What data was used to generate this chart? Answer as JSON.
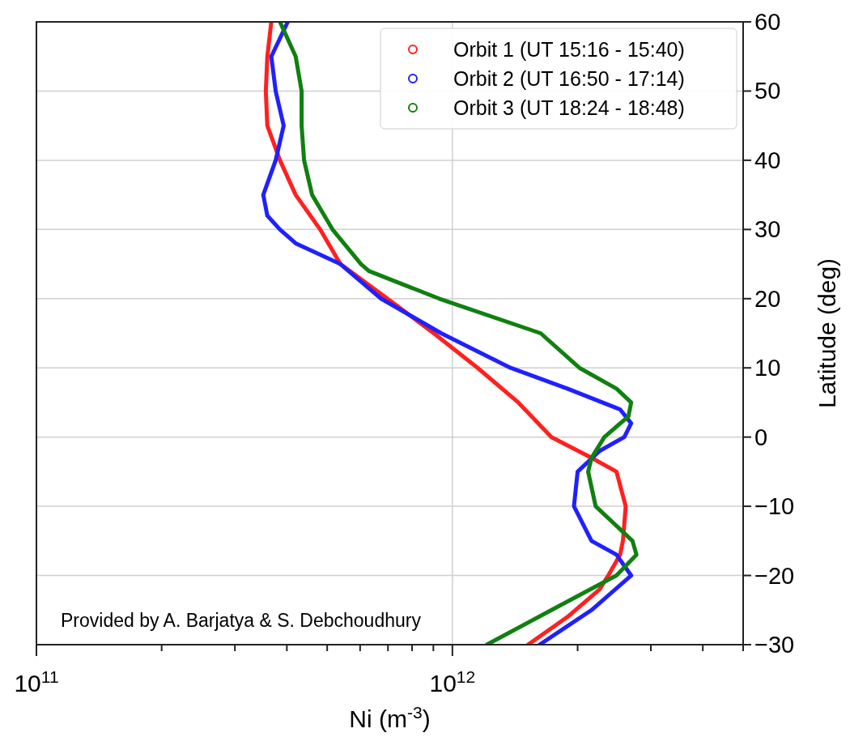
{
  "chart_data": {
    "type": "line",
    "xlabel": "Ni (m$^{-3}$)",
    "ylabel": "Latitude (deg)",
    "log": "x",
    "grid": true,
    "legend": "top right",
    "line_style": "solid",
    "xlim": [
      100000000000.0,
      5000000000000.0
    ],
    "xticks": [
      {
        "value": 100000000000.0,
        "label": "10$^{11}$"
      },
      {
        "value": 200000000000.0,
        "label": null
      },
      {
        "value": 300000000000.0,
        "label": null
      },
      {
        "value": 400000000000.0,
        "label": null
      },
      {
        "value": 500000000000.0,
        "label": null
      },
      {
        "value": 600000000000.0,
        "label": null
      },
      {
        "value": 700000000000.0,
        "label": null
      },
      {
        "value": 800000000000.0,
        "label": null
      },
      {
        "value": 900000000000.0,
        "label": null
      },
      {
        "value": 1000000000000.0,
        "label": "10$^{12}$"
      },
      {
        "value": 2000000000000.0,
        "label": null
      },
      {
        "value": 3000000000000.0,
        "label": null
      },
      {
        "value": 4000000000000.0,
        "label": null
      },
      {
        "value": 5000000000000.0,
        "label": null
      }
    ],
    "ylim": [
      -30,
      60
    ],
    "yticks": [
      -30,
      -20,
      -10,
      0,
      10,
      20,
      30,
      40,
      50,
      60
    ],
    "annotations": [
      "Provided by A. Barjatya & S. Debchoudhury"
    ],
    "series": [
      {
        "name": "Orbit 1 (UT 15:16 - 15:40)",
        "color": "#ff2020",
        "x": [
          1520000000000.0,
          1890000000000.0,
          2260000000000.0,
          2370000000000.0,
          2530000000000.0,
          2570000000000.0,
          2610000000000.0,
          2480000000000.0,
          2160000000000.0,
          1730000000000.0,
          1440000000000.0,
          1150000000000.0,
          902000000000.0,
          698000000000.0,
          538000000000.0,
          481000000000.0,
          420000000000.0,
          385000000000.0,
          359000000000.0,
          356000000000.0,
          359000000000.0,
          367000000000.0
        ],
        "values": [
          -30,
          -26,
          -22,
          -20,
          -17,
          -15,
          -10,
          -5,
          -3,
          0,
          5,
          10,
          15,
          20,
          25,
          30,
          35,
          40,
          45,
          50,
          55,
          60
        ]
      },
      {
        "name": "Orbit 2 (UT 16:50 - 17:14)",
        "color": "#2020ff",
        "x": [
          1620000000000.0,
          2160000000000.0,
          2690000000000.0,
          2480000000000.0,
          2160000000000.0,
          1960000000000.0,
          2000000000000.0,
          2260000000000.0,
          2590000000000.0,
          2690000000000.0,
          2530000000000.0,
          1890000000000.0,
          1380000000000.0,
          940000000000.0,
          674000000000.0,
          538000000000.0,
          420000000000.0,
          385000000000.0,
          359000000000.0,
          351000000000.0,
          376000000000.0,
          393000000000.0,
          376000000000.0,
          367000000000.0,
          402000000000.0
        ],
        "values": [
          -30,
          -25,
          -20,
          -17,
          -15,
          -10,
          -5,
          -2,
          0,
          2,
          4,
          7,
          10,
          15,
          20,
          25,
          28,
          30,
          32,
          35,
          40,
          45,
          50,
          55,
          60
        ]
      },
      {
        "name": "Orbit 3 (UT 18:24 - 18:48)",
        "color": "#108010",
        "x": [
          1210000000000.0,
          1730000000000.0,
          2480000000000.0,
          2770000000000.0,
          2710000000000.0,
          2210000000000.0,
          2120000000000.0,
          2160000000000.0,
          2320000000000.0,
          2650000000000.0,
          2690000000000.0,
          2480000000000.0,
          2020000000000.0,
          1630000000000.0,
          930000000000.0,
          630000000000.0,
          603000000000.0,
          515000000000.0,
          460000000000.0,
          440000000000.0,
          434000000000.0,
          434000000000.0,
          420000000000.0,
          385000000000.0
        ],
        "values": [
          -30,
          -25,
          -20,
          -17,
          -15,
          -10,
          -5,
          -3,
          0,
          3,
          5,
          7,
          10,
          15,
          20,
          24,
          25,
          30,
          35,
          40,
          45,
          50,
          55,
          60
        ]
      }
    ]
  }
}
